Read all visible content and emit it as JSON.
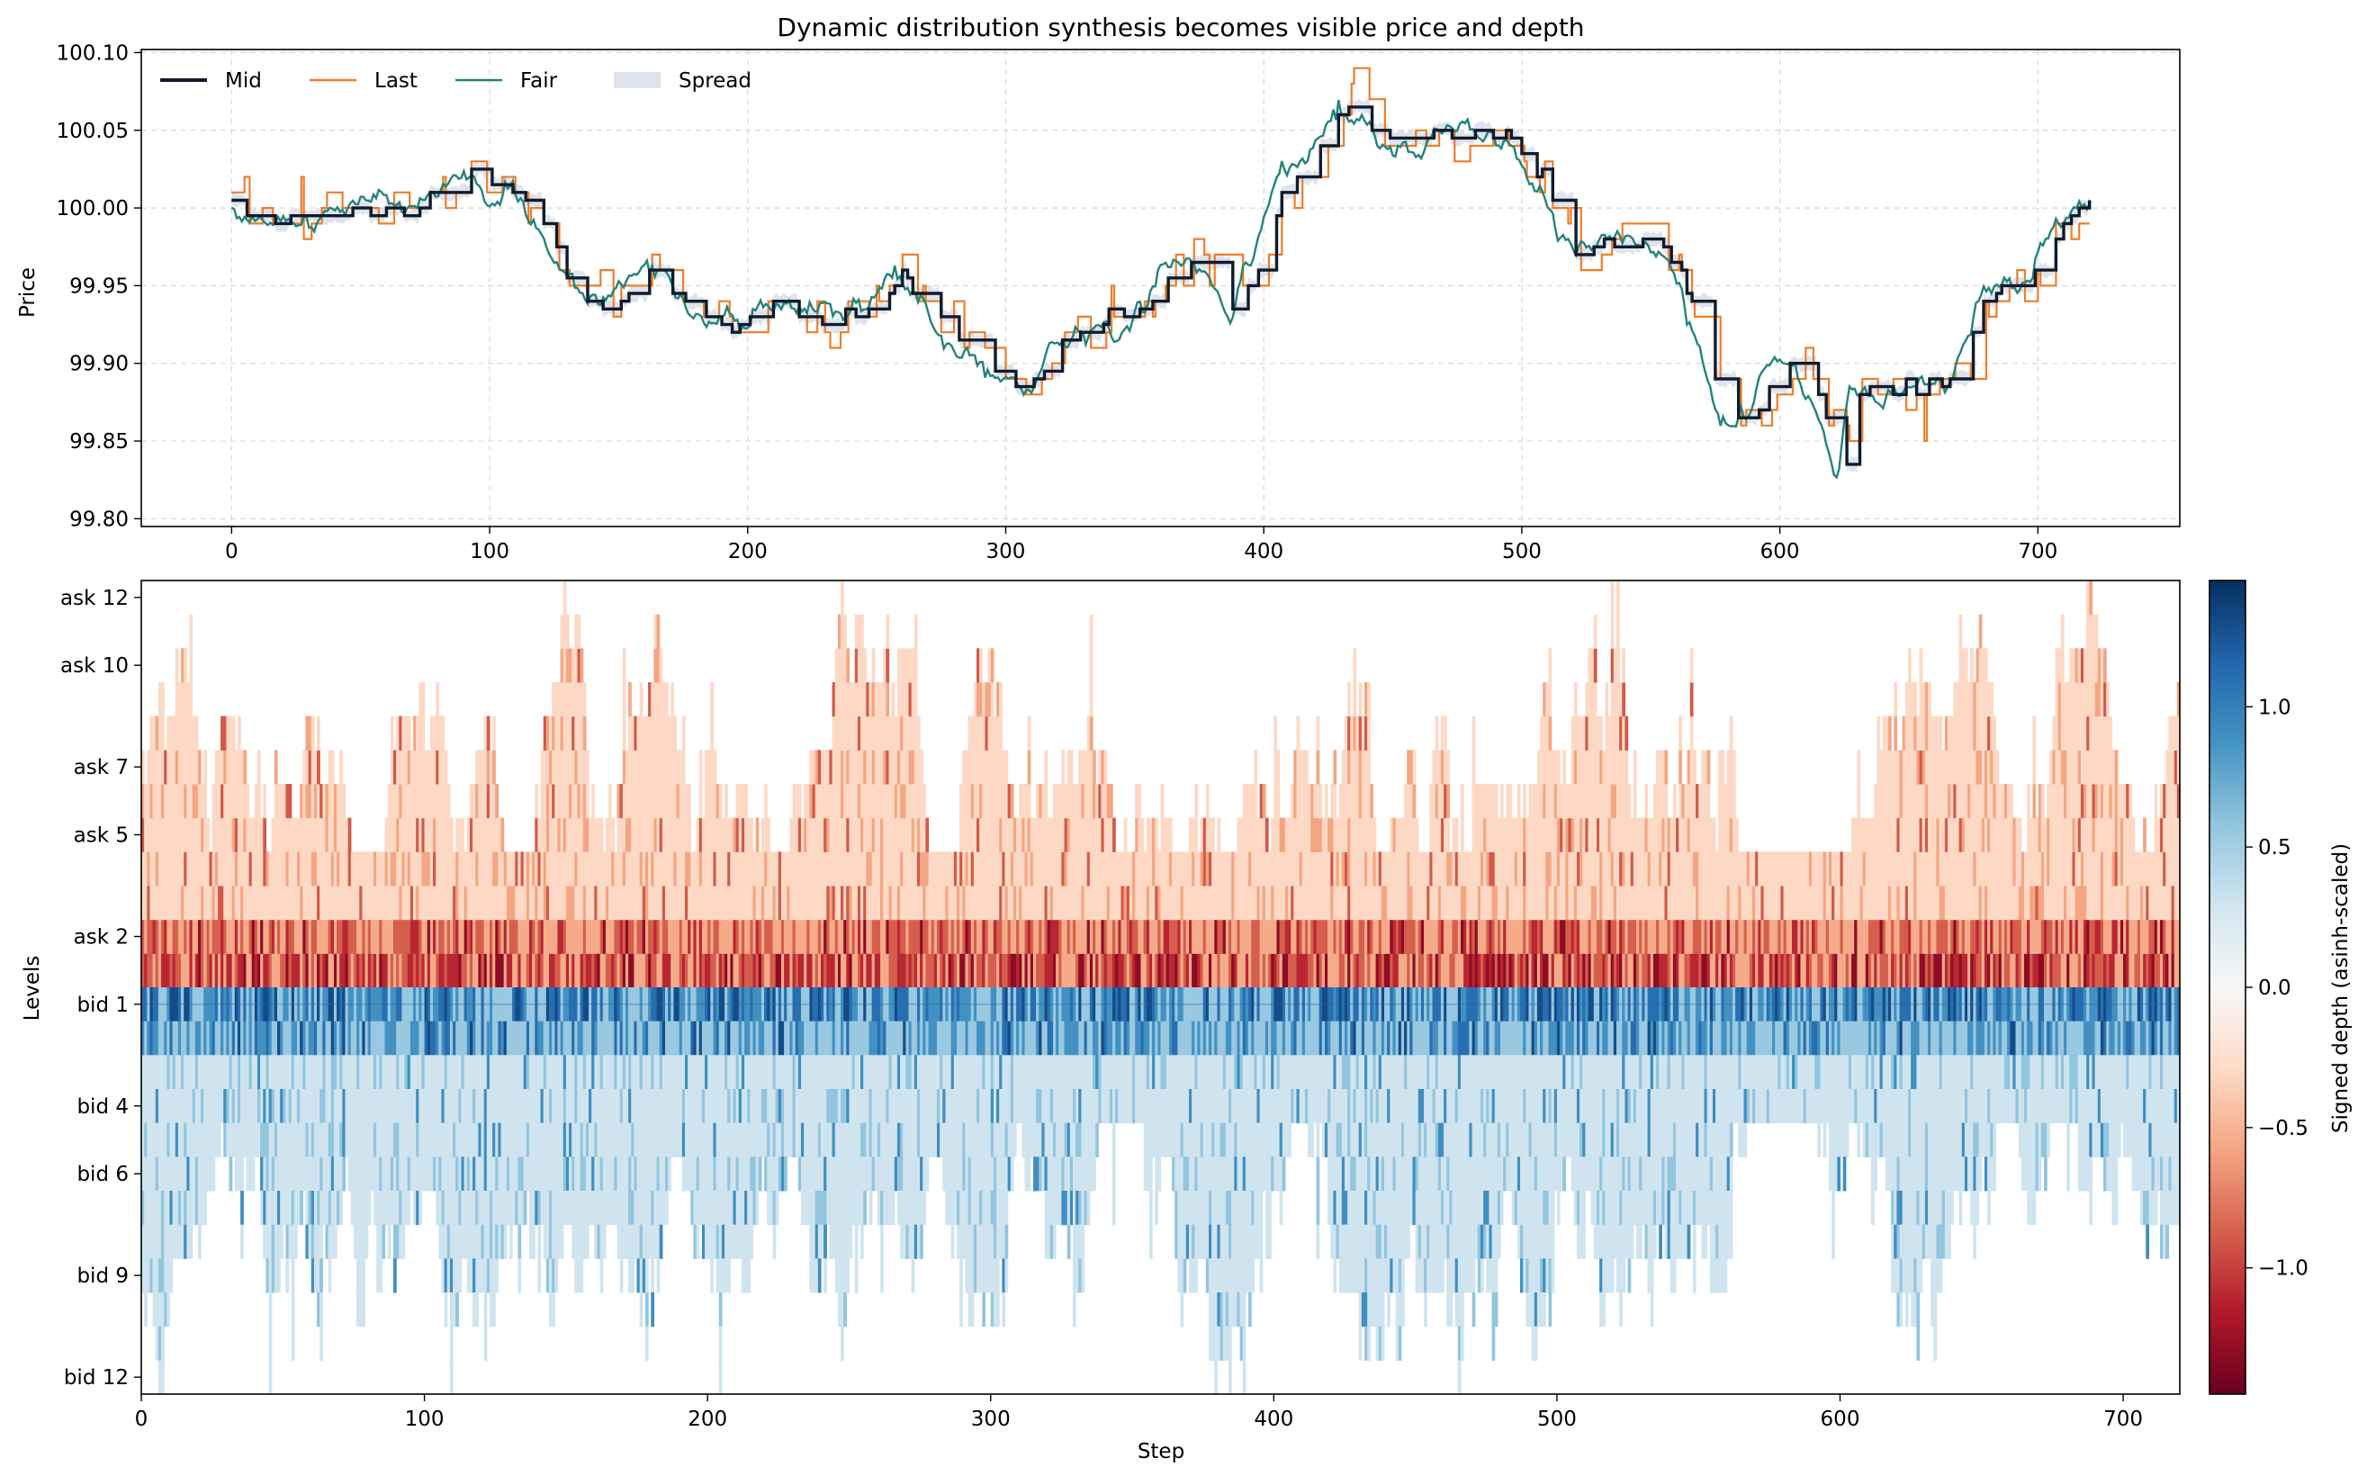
{
  "chart_data": [
    {
      "type": "line",
      "title": "Dynamic distribution synthesis becomes visible price and depth",
      "xlabel": "",
      "ylabel": "Price",
      "xlim": [
        -35,
        755
      ],
      "ylim": [
        99.795,
        100.102
      ],
      "xticks": [
        0,
        100,
        200,
        300,
        400,
        500,
        600,
        700
      ],
      "yticks": [
        99.8,
        99.85,
        99.9,
        99.95,
        100.0,
        100.05,
        100.1
      ],
      "ytick_labels": [
        "99.80",
        "99.85",
        "99.90",
        "99.95",
        "100.00",
        "100.05",
        "100.10"
      ],
      "grid": true,
      "legend_position": "top-left",
      "legend": [
        {
          "name": "Mid",
          "color": "#0f1b2d"
        },
        {
          "name": "Last",
          "color": "#ee7d2a"
        },
        {
          "name": "Fair",
          "color": "#23837a"
        },
        {
          "name": "Spread",
          "color": "#c5ccda"
        }
      ],
      "series_keypoints": {
        "x": [
          0,
          10,
          30,
          50,
          70,
          85,
          95,
          100,
          110,
          120,
          130,
          140,
          150,
          160,
          170,
          180,
          190,
          200,
          210,
          220,
          230,
          240,
          250,
          260,
          270,
          280,
          290,
          295,
          300,
          310,
          320,
          330,
          340,
          350,
          360,
          370,
          380,
          390,
          400,
          410,
          420,
          432,
          440,
          450,
          470,
          490,
          500,
          510,
          520,
          540,
          560,
          570,
          580,
          590,
          600,
          610,
          620,
          625,
          630,
          640,
          660,
          670,
          680,
          690,
          700,
          710,
          720
        ],
        "mid": [
          100.0,
          99.992,
          99.995,
          99.998,
          100.0,
          100.01,
          100.025,
          100.015,
          100.01,
          99.995,
          99.96,
          99.935,
          99.94,
          99.96,
          99.955,
          99.935,
          99.93,
          99.925,
          99.935,
          99.93,
          99.925,
          99.93,
          99.935,
          99.955,
          99.94,
          99.915,
          99.91,
          99.895,
          99.895,
          99.885,
          99.905,
          99.92,
          99.93,
          99.935,
          99.945,
          99.97,
          99.965,
          99.93,
          99.975,
          100.02,
          100.035,
          100.065,
          100.055,
          100.045,
          100.045,
          100.045,
          100.04,
          100.01,
          99.975,
          99.975,
          99.97,
          99.915,
          99.86,
          99.87,
          99.9,
          99.895,
          99.86,
          99.83,
          99.88,
          99.885,
          99.885,
          99.895,
          99.945,
          99.95,
          99.955,
          99.99,
          100.005
        ]
      },
      "spread_width": 0.008
    },
    {
      "type": "heatmap",
      "title": "",
      "xlabel": "Step",
      "ylabel": "Levels",
      "xlim": [
        0,
        720
      ],
      "xticks": [
        0,
        100,
        200,
        300,
        400,
        500,
        600,
        700
      ],
      "levels_top_to_bottom": [
        "ask 12",
        "ask 11",
        "ask 10",
        "ask 9",
        "ask 8",
        "ask 7",
        "ask 6",
        "ask 5",
        "ask 4",
        "ask 3",
        "ask 2",
        "ask 1",
        "bid 1",
        "bid 2",
        "bid 3",
        "bid 4",
        "bid 5",
        "bid 6",
        "bid 7",
        "bid 8",
        "bid 9",
        "bid 10",
        "bid 11",
        "bid 12"
      ],
      "ytick_labels": [
        "ask 12",
        "ask 10",
        "ask 7",
        "ask 5",
        "ask 2",
        "bid 1",
        "bid 4",
        "bid 6",
        "bid 9",
        "bid 12"
      ],
      "colorbar": {
        "label": "Signed depth (asinh-scaled)",
        "range": [
          -1.45,
          1.45
        ],
        "ticks": [
          1.0,
          0.5,
          0.0,
          -0.5,
          -1.0
        ],
        "tick_labels": [
          "1.0",
          "0.5",
          "0.0",
          "−0.5",
          "−1.0"
        ],
        "colormap": "RdBu"
      },
      "typical_magnitude_by_depth": [
        0.55,
        0.45,
        0.33,
        0.33,
        0.33,
        0.3,
        0.3,
        0.3,
        0.28,
        0.28,
        0.28,
        0.28
      ]
    }
  ]
}
